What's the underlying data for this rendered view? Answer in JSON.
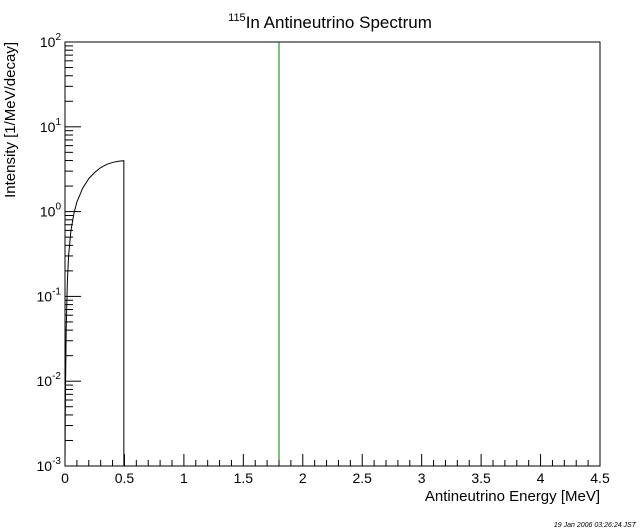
{
  "chart_data": {
    "type": "line",
    "title_sup": "115",
    "title_main": "In Antineutrino Spectrum",
    "xlabel": "Antineutrino Energy [MeV]",
    "ylabel": "Intensity [1/MeV/decay]",
    "xlim": [
      0,
      4.5
    ],
    "ylim": [
      0.001,
      100
    ],
    "yscale": "log",
    "grid": false,
    "x_ticks": [
      "0",
      "0.5",
      "1",
      "1.5",
      "2",
      "2.5",
      "3",
      "3.5",
      "4",
      "4.5"
    ],
    "y_ticks": [
      {
        "base": "10",
        "exp": "-3"
      },
      {
        "base": "10",
        "exp": "-2"
      },
      {
        "base": "10",
        "exp": "-1"
      },
      {
        "base": "10",
        "exp": "0"
      },
      {
        "base": "10",
        "exp": "1"
      },
      {
        "base": "10",
        "exp": "2"
      }
    ],
    "series": [
      {
        "color": "#000000",
        "x": [
          0.0,
          0.002,
          0.005,
          0.01,
          0.02,
          0.03,
          0.05,
          0.075,
          0.1,
          0.15,
          0.2,
          0.25,
          0.3,
          0.35,
          0.4,
          0.45,
          0.495,
          0.495
        ],
        "y": [
          0.001,
          0.0035,
          0.01,
          0.04,
          0.15,
          0.3,
          0.6,
          0.95,
          1.3,
          1.9,
          2.45,
          2.9,
          3.3,
          3.6,
          3.8,
          3.92,
          3.98,
          0.001
        ]
      },
      {
        "color": "#008000",
        "x": [
          1.8,
          1.8
        ],
        "y": [
          0.001,
          100
        ]
      }
    ]
  },
  "timestamp": "19 Jan 2006 03:26:24 JST"
}
